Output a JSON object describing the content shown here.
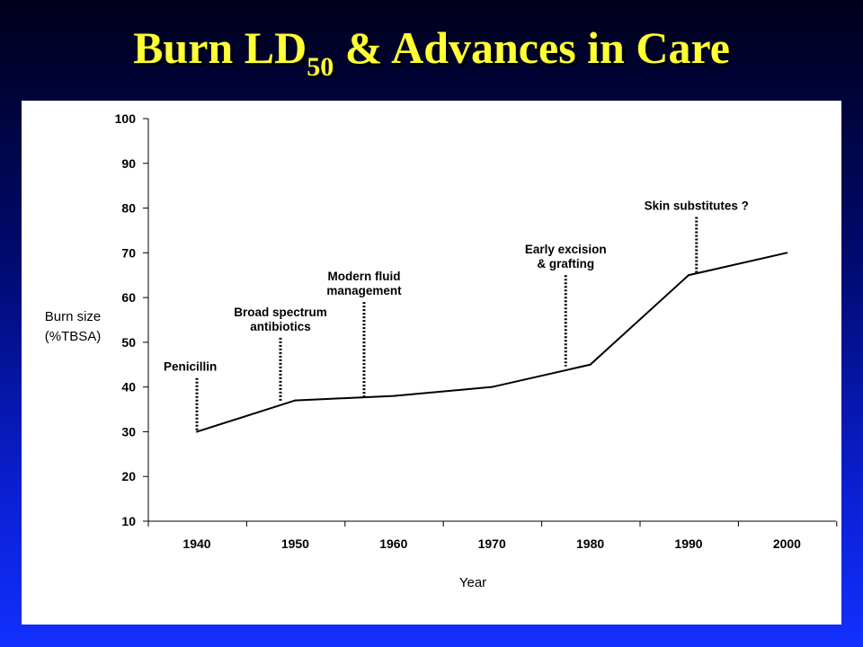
{
  "slide": {
    "title_main": "Burn LD",
    "title_sub": "50",
    "title_rest": " & Advances in Care"
  },
  "chart_data": {
    "type": "line",
    "x": [
      1940,
      1950,
      1960,
      1970,
      1980,
      1990,
      2000
    ],
    "categories": [
      "1940",
      "1950",
      "1960",
      "1970",
      "1980",
      "1990",
      "2000"
    ],
    "series": [
      {
        "values": [
          30,
          37,
          38,
          40,
          45,
          65,
          70
        ]
      }
    ],
    "xlabel": "Year",
    "ylabel_lines": [
      "Burn size",
      "(%TBSA)"
    ],
    "ylim": [
      10,
      100
    ],
    "yticks": [
      10,
      20,
      30,
      40,
      50,
      60,
      70,
      80,
      90,
      100
    ],
    "grid": false,
    "line_color": "#000000",
    "annotations": [
      {
        "lines": [
          "Penicillin"
        ],
        "year": 1940,
        "y_top": 42,
        "y_bottom": 30
      },
      {
        "lines": [
          "Broad spectrum",
          "antibiotics"
        ],
        "year": 1948.5,
        "y_top": 51,
        "y_bottom": 36.8
      },
      {
        "lines": [
          "Modern fluid",
          "management"
        ],
        "year": 1957,
        "y_top": 59,
        "y_bottom": 37.7
      },
      {
        "lines": [
          "Early excision",
          "& grafting"
        ],
        "year": 1977.5,
        "y_top": 65,
        "y_bottom": 44.6
      },
      {
        "lines": [
          "Skin substitutes ?"
        ],
        "year": 1990.8,
        "y_top": 78,
        "y_bottom": 65.4
      }
    ]
  }
}
